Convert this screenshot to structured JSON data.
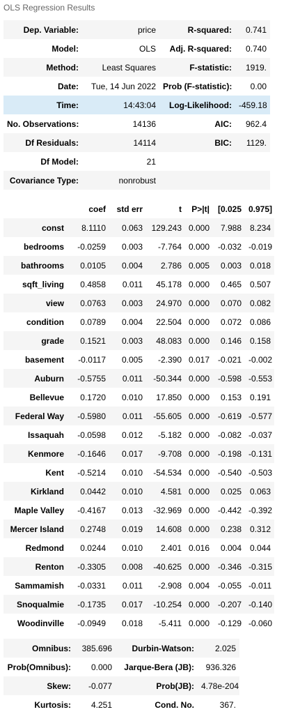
{
  "caption": "OLS Regression Results",
  "summary_rows": [
    [
      "Dep. Variable:",
      "price",
      "R-squared:",
      "0.741"
    ],
    [
      "Model:",
      "OLS",
      "Adj. R-squared:",
      "0.740"
    ],
    [
      "Method:",
      "Least Squares",
      "F-statistic:",
      "1919."
    ],
    [
      "Date:",
      "Tue, 14 Jun 2022",
      "Prob (F-statistic):",
      "0.00"
    ],
    [
      "Time:",
      "14:43:04",
      "Log-Likelihood:",
      "-459.18"
    ],
    [
      "No. Observations:",
      "14136",
      "AIC:",
      "962.4"
    ],
    [
      "Df Residuals:",
      "14114",
      "BIC:",
      "1129."
    ],
    [
      "Df Model:",
      "21",
      "",
      ""
    ],
    [
      "Covariance Type:",
      "nonrobust",
      "",
      ""
    ]
  ],
  "coef_headers": [
    "",
    "coef",
    "std err",
    "t",
    "P>|t|",
    "[0.025",
    "0.975]"
  ],
  "coef_rows": [
    [
      "const",
      "8.1110",
      "0.063",
      "129.243",
      "0.000",
      "7.988",
      "8.234"
    ],
    [
      "bedrooms",
      "-0.0259",
      "0.003",
      "-7.764",
      "0.000",
      "-0.032",
      "-0.019"
    ],
    [
      "bathrooms",
      "0.0105",
      "0.004",
      "2.786",
      "0.005",
      "0.003",
      "0.018"
    ],
    [
      "sqft_living",
      "0.4858",
      "0.011",
      "45.178",
      "0.000",
      "0.465",
      "0.507"
    ],
    [
      "view",
      "0.0763",
      "0.003",
      "24.970",
      "0.000",
      "0.070",
      "0.082"
    ],
    [
      "condition",
      "0.0789",
      "0.004",
      "22.504",
      "0.000",
      "0.072",
      "0.086"
    ],
    [
      "grade",
      "0.1521",
      "0.003",
      "48.083",
      "0.000",
      "0.146",
      "0.158"
    ],
    [
      "basement",
      "-0.0117",
      "0.005",
      "-2.390",
      "0.017",
      "-0.021",
      "-0.002"
    ],
    [
      "Auburn",
      "-0.5755",
      "0.011",
      "-50.344",
      "0.000",
      "-0.598",
      "-0.553"
    ],
    [
      "Bellevue",
      "0.1720",
      "0.010",
      "17.850",
      "0.000",
      "0.153",
      "0.191"
    ],
    [
      "Federal Way",
      "-0.5980",
      "0.011",
      "-55.605",
      "0.000",
      "-0.619",
      "-0.577"
    ],
    [
      "Issaquah",
      "-0.0598",
      "0.012",
      "-5.182",
      "0.000",
      "-0.082",
      "-0.037"
    ],
    [
      "Kenmore",
      "-0.1646",
      "0.017",
      "-9.708",
      "0.000",
      "-0.198",
      "-0.131"
    ],
    [
      "Kent",
      "-0.5214",
      "0.010",
      "-54.534",
      "0.000",
      "-0.540",
      "-0.503"
    ],
    [
      "Kirkland",
      "0.0442",
      "0.010",
      "4.581",
      "0.000",
      "0.025",
      "0.063"
    ],
    [
      "Maple Valley",
      "-0.4167",
      "0.013",
      "-32.969",
      "0.000",
      "-0.442",
      "-0.392"
    ],
    [
      "Mercer Island",
      "0.2748",
      "0.019",
      "14.608",
      "0.000",
      "0.238",
      "0.312"
    ],
    [
      "Redmond",
      "0.0244",
      "0.010",
      "2.401",
      "0.016",
      "0.004",
      "0.044"
    ],
    [
      "Renton",
      "-0.3305",
      "0.008",
      "-40.625",
      "0.000",
      "-0.346",
      "-0.315"
    ],
    [
      "Sammamish",
      "-0.0331",
      "0.011",
      "-2.908",
      "0.004",
      "-0.055",
      "-0.011"
    ],
    [
      "Snoqualmie",
      "-0.1735",
      "0.017",
      "-10.254",
      "0.000",
      "-0.207",
      "-0.140"
    ],
    [
      "Woodinville",
      "-0.0949",
      "0.018",
      "-5.411",
      "0.000",
      "-0.129",
      "-0.060"
    ]
  ],
  "diag_rows": [
    [
      "Omnibus:",
      "385.696",
      "Durbin-Watson:",
      "2.025"
    ],
    [
      "Prob(Omnibus):",
      "0.000",
      "Jarque-Bera (JB):",
      "936.326"
    ],
    [
      "Skew:",
      "-0.077",
      "Prob(JB):",
      "4.78e-204"
    ],
    [
      "Kurtosis:",
      "4.251",
      "Cond. No.",
      "367."
    ]
  ],
  "highlight_color": "#d9ebf7",
  "stripe_color": "#f5f5f5"
}
